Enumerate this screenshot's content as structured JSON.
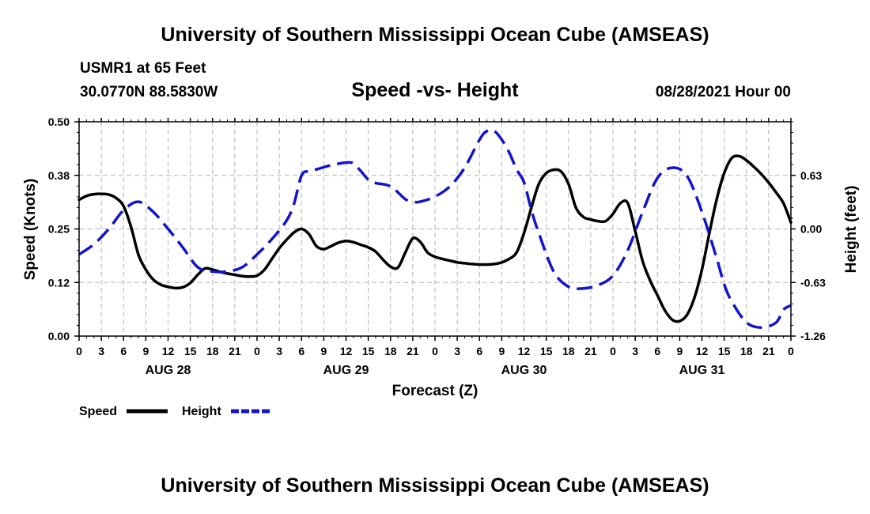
{
  "header": {
    "title_top": "University of Southern Mississippi Ocean Cube (AMSEAS)",
    "station": "USMR1 at 65 Feet",
    "coordinates": "30.0770N  88.5830W",
    "chart_title": "Speed -vs- Height",
    "date": "08/28/2021 Hour 00"
  },
  "footer": {
    "title_bottom": "University of Southern Mississippi Ocean Cube (AMSEAS)"
  },
  "legend": {
    "speed_label": "Speed",
    "height_label": "Height"
  },
  "colors": {
    "speed": "#000000",
    "height": "#1414c8",
    "grid": "#b4b4b4"
  },
  "chart_data": {
    "type": "line",
    "title": "Speed -vs- Height",
    "xlabel": "Forecast (Z)",
    "ylabel": "Speed (Knots)",
    "y2label": "Height (feet)",
    "xlim": [
      0,
      96
    ],
    "ylim": [
      0,
      0.5
    ],
    "y2lim": [
      -1.26,
      1.26
    ],
    "grid": true,
    "legend_position": "bottom-left",
    "yticks": [
      0,
      0.125,
      0.25,
      0.375,
      0.5
    ],
    "ytick_labels": [
      "0.00",
      "0.12",
      "0.25",
      "0.38",
      "0.50"
    ],
    "y2ticks": [
      -1.26,
      -0.63,
      0,
      0.63
    ],
    "y2tick_labels": [
      "-1.26",
      "-0.63",
      "0.00",
      "0.63"
    ],
    "xticks": [
      0,
      3,
      6,
      9,
      12,
      15,
      18,
      21,
      24,
      27,
      30,
      33,
      36,
      39,
      42,
      45,
      48,
      51,
      54,
      57,
      60,
      63,
      66,
      69,
      72,
      75,
      78,
      81,
      84,
      87,
      90,
      93,
      96
    ],
    "xtick_labels": [
      "0",
      "3",
      "6",
      "9",
      "12",
      "15",
      "18",
      "21",
      "0",
      "3",
      "6",
      "9",
      "12",
      "15",
      "18",
      "21",
      "0",
      "3",
      "6",
      "9",
      "12",
      "15",
      "18",
      "21",
      "0",
      "3",
      "6",
      "9",
      "12",
      "15",
      "18",
      "21",
      "0"
    ],
    "day_labels": [
      {
        "hour": 12,
        "label": "AUG 28"
      },
      {
        "hour": 36,
        "label": "AUG 29"
      },
      {
        "hour": 60,
        "label": "AUG 30"
      },
      {
        "hour": 84,
        "label": "AUG 31"
      }
    ],
    "series": [
      {
        "name": "Speed",
        "axis": "left",
        "style": "solid",
        "x": [
          0,
          1,
          2,
          3,
          4,
          5,
          6,
          7,
          8,
          9,
          10,
          11,
          12,
          13,
          14,
          15,
          16,
          17,
          18,
          19,
          20,
          21,
          22,
          23,
          24,
          25,
          26,
          27,
          28,
          29,
          30,
          31,
          32,
          33,
          34,
          35,
          36,
          37,
          38,
          39,
          40,
          41,
          42,
          43,
          44,
          45,
          46,
          47,
          48,
          49,
          50,
          51,
          52,
          53,
          54,
          55,
          56,
          57,
          58,
          59,
          60,
          61,
          62,
          63,
          64,
          65,
          66,
          67,
          68,
          69,
          70,
          71,
          72,
          73,
          74,
          75,
          76,
          77,
          78,
          79,
          80,
          81,
          82,
          83,
          84,
          85,
          86,
          87,
          88,
          89,
          90,
          91,
          92,
          93,
          94,
          95,
          96
        ],
        "values": [
          0.318,
          0.327,
          0.331,
          0.332,
          0.33,
          0.322,
          0.303,
          0.255,
          0.19,
          0.155,
          0.132,
          0.12,
          0.115,
          0.112,
          0.114,
          0.124,
          0.143,
          0.158,
          0.155,
          0.15,
          0.146,
          0.143,
          0.14,
          0.139,
          0.141,
          0.155,
          0.18,
          0.205,
          0.225,
          0.242,
          0.25,
          0.238,
          0.21,
          0.203,
          0.21,
          0.218,
          0.222,
          0.219,
          0.213,
          0.207,
          0.197,
          0.178,
          0.162,
          0.16,
          0.195,
          0.228,
          0.22,
          0.195,
          0.185,
          0.18,
          0.176,
          0.172,
          0.17,
          0.168,
          0.167,
          0.167,
          0.168,
          0.172,
          0.18,
          0.195,
          0.24,
          0.3,
          0.355,
          0.38,
          0.388,
          0.384,
          0.355,
          0.3,
          0.278,
          0.272,
          0.268,
          0.268,
          0.285,
          0.31,
          0.31,
          0.245,
          0.175,
          0.13,
          0.095,
          0.06,
          0.038,
          0.035,
          0.05,
          0.09,
          0.155,
          0.24,
          0.32,
          0.38,
          0.415,
          0.42,
          0.41,
          0.395,
          0.378,
          0.358,
          0.335,
          0.31,
          0.265
        ]
      },
      {
        "name": "Height",
        "axis": "right",
        "style": "dashed",
        "x": [
          0,
          2,
          4,
          6,
          8,
          10,
          12,
          14,
          16,
          18,
          20,
          22,
          24,
          26,
          28,
          29,
          30,
          31,
          32,
          34,
          36,
          37,
          38,
          39,
          40,
          42,
          44,
          45,
          46,
          48,
          50,
          52,
          54,
          55,
          56,
          57,
          58,
          59,
          60,
          61,
          62,
          64,
          66,
          68,
          70,
          72,
          74,
          76,
          78,
          80,
          82,
          84,
          86,
          87,
          88,
          90,
          92,
          94,
          95,
          96
        ],
        "values": [
          -0.3,
          -0.18,
          0.0,
          0.22,
          0.32,
          0.2,
          0.0,
          -0.22,
          -0.45,
          -0.5,
          -0.5,
          -0.45,
          -0.3,
          -0.12,
          0.1,
          0.3,
          0.63,
          0.68,
          0.7,
          0.75,
          0.78,
          0.77,
          0.68,
          0.58,
          0.54,
          0.5,
          0.35,
          0.32,
          0.32,
          0.38,
          0.5,
          0.72,
          1.05,
          1.15,
          1.15,
          1.05,
          0.9,
          0.7,
          0.55,
          0.22,
          -0.05,
          -0.5,
          -0.68,
          -0.7,
          -0.66,
          -0.55,
          -0.25,
          0.2,
          0.6,
          0.72,
          0.62,
          0.2,
          -0.35,
          -0.65,
          -0.85,
          -1.1,
          -1.16,
          -1.1,
          -0.95,
          -0.9
        ]
      }
    ]
  }
}
